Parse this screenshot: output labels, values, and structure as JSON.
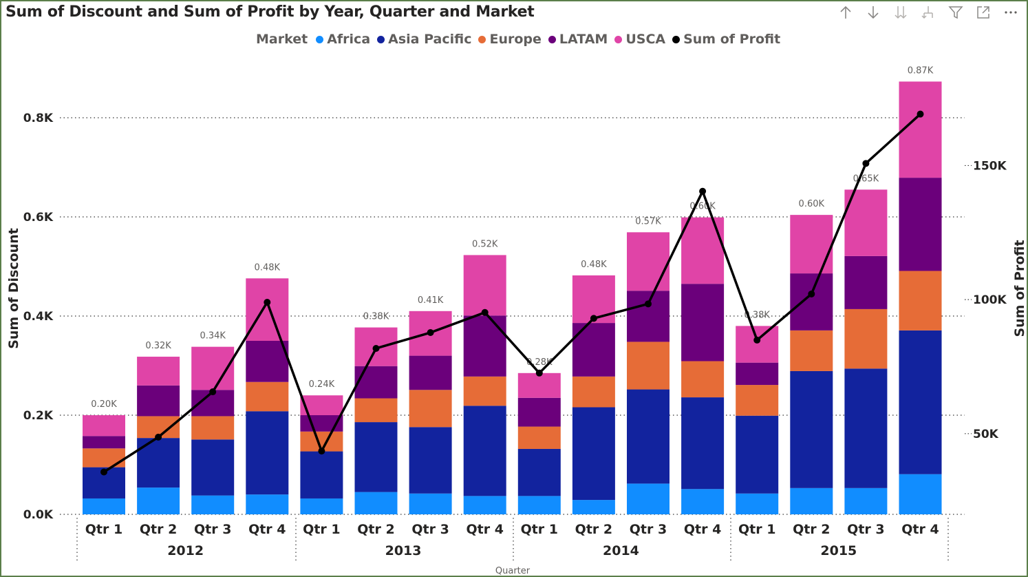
{
  "title": "Sum of Discount and Sum of Profit by Year, Quarter and Market",
  "toolbar": {
    "icons": [
      "arrow-up-icon",
      "arrow-down-icon",
      "double-arrow-down-icon",
      "expand-hierarchy-icon",
      "filter-icon",
      "focus-mode-icon",
      "more-options-icon"
    ]
  },
  "legend": {
    "title": "Market",
    "items": [
      {
        "label": "Africa",
        "color": "#118dff"
      },
      {
        "label": "Asia Pacific",
        "color": "#12239e"
      },
      {
        "label": "Europe",
        "color": "#e66c37"
      },
      {
        "label": "LATAM",
        "color": "#6b007b"
      },
      {
        "label": "USCA",
        "color": "#e044a7"
      },
      {
        "label": "Sum of Profit",
        "color": "#000000"
      }
    ]
  },
  "chart_data": {
    "type": "bar",
    "subtype": "stacked-column-with-line",
    "x_title": "Quarter",
    "y_left_title": "Sum of Discount",
    "y_right_title": "Sum of Profit",
    "y_left_ticks": [
      "0.0K",
      "0.2K",
      "0.4K",
      "0.6K",
      "0.8K"
    ],
    "y_left_lim": [
      0,
      875
    ],
    "y_right_ticks": [
      "50K",
      "100K",
      "150K"
    ],
    "y_right_lim": [
      19900,
      181700
    ],
    "years": [
      "2012",
      "2013",
      "2014",
      "2015"
    ],
    "categories": [
      "Qtr 1",
      "Qtr 2",
      "Qtr 3",
      "Qtr 4",
      "Qtr 1",
      "Qtr 2",
      "Qtr 3",
      "Qtr 4",
      "Qtr 1",
      "Qtr 2",
      "Qtr 3",
      "Qtr 4",
      "Qtr 1",
      "Qtr 2",
      "Qtr 3",
      "Qtr 4"
    ],
    "series": [
      {
        "name": "Africa",
        "color": "#118dff",
        "values": [
          32,
          54,
          38,
          40,
          32,
          45,
          42,
          37,
          37,
          29,
          62,
          51,
          42,
          53,
          53,
          81
        ]
      },
      {
        "name": "Asia Pacific",
        "color": "#12239e",
        "values": [
          63,
          100,
          113,
          168,
          95,
          141,
          134,
          182,
          95,
          187,
          190,
          185,
          157,
          236,
          241,
          290
        ]
      },
      {
        "name": "Europe",
        "color": "#e66c37",
        "values": [
          38,
          44,
          47,
          59,
          40,
          48,
          75,
          59,
          45,
          62,
          96,
          73,
          62,
          82,
          120,
          120
        ]
      },
      {
        "name": "LATAM",
        "color": "#6b007b",
        "values": [
          25,
          62,
          53,
          83,
          33,
          65,
          69,
          123,
          58,
          108,
          103,
          156,
          45,
          115,
          107,
          188
        ]
      },
      {
        "name": "USCA",
        "color": "#e044a7",
        "values": [
          42,
          58,
          87,
          126,
          40,
          78,
          90,
          122,
          50,
          96,
          118,
          134,
          74,
          118,
          134,
          194
        ]
      }
    ],
    "totals_labels": [
      "0.20K",
      "0.32K",
      "0.34K",
      "0.48K",
      "0.24K",
      "0.38K",
      "0.41K",
      "0.52K",
      "0.28K",
      "0.48K",
      "0.57K",
      "0.60K",
      "0.38K",
      "0.60K",
      "0.65K",
      "0.87K"
    ],
    "line": {
      "name": "Sum of Profit",
      "color": "#000000",
      "values": [
        35700,
        48700,
        65600,
        99000,
        43500,
        81800,
        87700,
        95200,
        72600,
        93000,
        98400,
        140400,
        84900,
        102100,
        150800,
        169200
      ]
    }
  }
}
